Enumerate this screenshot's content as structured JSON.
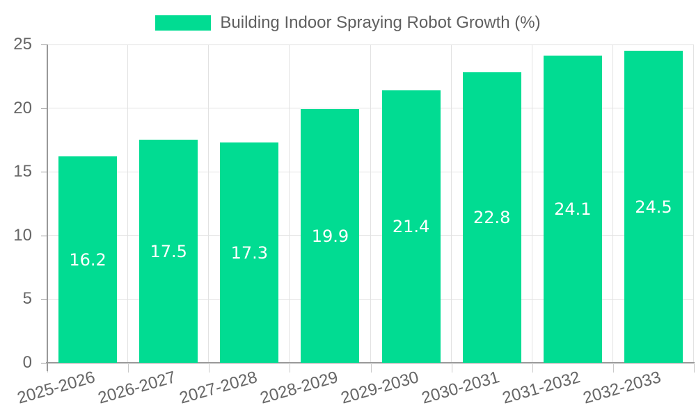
{
  "chart_data": {
    "type": "bar",
    "title": "Building Indoor Spraying Robot Growth (%)",
    "xlabel": "",
    "ylabel": "",
    "categories": [
      "2025-2026",
      "2026-2027",
      "2027-2028",
      "2028-2029",
      "2029-2030",
      "2030-2031",
      "2031-2032",
      "2032-2033"
    ],
    "series": [
      {
        "name": "Building Indoor Spraying Robot Growth (%)",
        "values": [
          16.2,
          17.5,
          17.3,
          19.9,
          21.4,
          22.8,
          24.1,
          24.5
        ]
      }
    ],
    "value_labels": [
      "16.2",
      "17.5",
      "17.3",
      "19.9",
      "21.4",
      "22.8",
      "24.1",
      "24.5"
    ],
    "ylim": [
      0,
      25
    ],
    "yticks": [
      0,
      5,
      10,
      15,
      20,
      25
    ],
    "grid": true,
    "legend_position": "top",
    "colors": {
      "bar": "#01dc92",
      "axis_line": "#999999",
      "grid_line": "#e2e2e2",
      "x_tick": "#c9c9c9",
      "y_tick": "#999999",
      "axis_text": "#666666",
      "legend_text": "#5f5f5f",
      "value_text": "#ffffff"
    }
  }
}
